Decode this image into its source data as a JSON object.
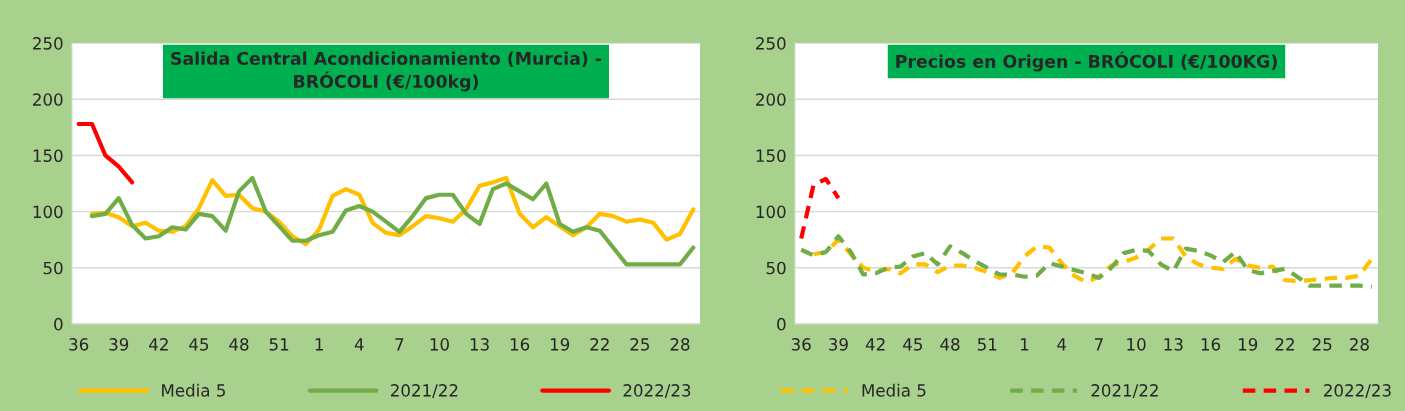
{
  "chart_data": [
    {
      "type": "line",
      "title": "Salida Central Acondicionamiento (Murcia) -\nBRÓCOLI (€/100kg)",
      "categories": [
        "36",
        null,
        null,
        "39",
        null,
        null,
        "42",
        null,
        null,
        "45",
        null,
        null,
        "48",
        null,
        null,
        "51",
        null,
        null,
        "1",
        null,
        null,
        "4",
        null,
        null,
        "7",
        null,
        null,
        "10",
        null,
        null,
        "13",
        null,
        null,
        "16",
        null,
        null,
        "19",
        null,
        null,
        "22",
        null,
        null,
        "25",
        null,
        null,
        "28",
        null
      ],
      "series": [
        {
          "name": "Media 5",
          "color": "#ffc000",
          "values": [
            null,
            98,
            99,
            95,
            87,
            90,
            83,
            82,
            87,
            103,
            128,
            114,
            115,
            103,
            100,
            91,
            78,
            71,
            84,
            114,
            120,
            115,
            90,
            81,
            79,
            87,
            96,
            94,
            91,
            102,
            123,
            126,
            130,
            98,
            86,
            95,
            87,
            79,
            86,
            98,
            96,
            91,
            93,
            90,
            75,
            80,
            102
          ]
        },
        {
          "name": "2021/22",
          "color": "#70ad47",
          "values": [
            null,
            96,
            98,
            112,
            88,
            76,
            78,
            86,
            84,
            98,
            96,
            83,
            118,
            130,
            100,
            87,
            74,
            74,
            79,
            82,
            101,
            105,
            100,
            91,
            82,
            96,
            112,
            115,
            115,
            98,
            89,
            120,
            125,
            118,
            111,
            125,
            89,
            82,
            86,
            83,
            68,
            53,
            53,
            53,
            53,
            53,
            68
          ]
        },
        {
          "name": "2022/23",
          "color": "#ff0000",
          "values": [
            178,
            178,
            150,
            140,
            126,
            null,
            null,
            null,
            null,
            null,
            null,
            null,
            null,
            null,
            null,
            null,
            null,
            null,
            null,
            null,
            null,
            null,
            null,
            null,
            null,
            null,
            null,
            null,
            null,
            null,
            null,
            null,
            null,
            null,
            null,
            null,
            null,
            null,
            null,
            null,
            null,
            null,
            null,
            null,
            null,
            null,
            null
          ]
        }
      ],
      "ylim": [
        0,
        250
      ],
      "yticks": [
        0,
        50,
        100,
        150,
        200,
        250
      ],
      "grid": "y",
      "legend": "bottom",
      "line_style": "solid"
    },
    {
      "type": "line",
      "title": "Precios en Origen - BRÓCOLI (€/100KG)",
      "categories": [
        "36",
        null,
        null,
        "39",
        null,
        null,
        "42",
        null,
        null,
        "45",
        null,
        null,
        "48",
        null,
        null,
        "51",
        null,
        null,
        "1",
        null,
        null,
        "4",
        null,
        null,
        "7",
        null,
        null,
        "10",
        null,
        null,
        "13",
        null,
        null,
        "16",
        null,
        null,
        "19",
        null,
        null,
        "22",
        null,
        null,
        "25",
        null,
        null,
        "28",
        null
      ],
      "series": [
        {
          "name": "Media 5",
          "color": "#ffc000",
          "values": [
            null,
            62,
            64,
            75,
            62,
            50,
            47,
            49,
            45,
            53,
            53,
            46,
            52,
            52,
            50,
            46,
            41,
            45,
            60,
            69,
            68,
            54,
            43,
            37,
            42,
            52,
            55,
            59,
            66,
            76,
            76,
            60,
            53,
            50,
            49,
            58,
            52,
            50,
            51,
            39,
            38,
            39,
            40,
            41,
            41,
            43,
            58
          ]
        },
        {
          "name": "2021/22",
          "color": "#70ad47",
          "values": [
            66,
            61,
            64,
            78,
            64,
            44,
            45,
            50,
            51,
            60,
            63,
            53,
            69,
            63,
            56,
            50,
            44,
            44,
            42,
            43,
            54,
            51,
            48,
            45,
            41,
            50,
            63,
            66,
            65,
            53,
            47,
            67,
            65,
            61,
            55,
            64,
            48,
            45,
            47,
            49,
            42,
            34,
            34,
            34,
            34,
            34,
            33
          ]
        },
        {
          "name": "2022/23",
          "color": "#ff0000",
          "values": [
            76,
            124,
            129,
            112,
            null,
            null,
            null,
            null,
            null,
            null,
            null,
            null,
            null,
            null,
            null,
            null,
            null,
            null,
            null,
            null,
            null,
            null,
            null,
            null,
            null,
            null,
            null,
            null,
            null,
            null,
            null,
            null,
            null,
            null,
            null,
            null,
            null,
            null,
            null,
            null,
            null,
            null,
            null,
            null,
            null,
            null,
            null
          ]
        }
      ],
      "ylim": [
        0,
        250
      ],
      "yticks": [
        0,
        50,
        100,
        150,
        200,
        250
      ],
      "grid": "y",
      "legend": "bottom",
      "line_style": "dashed"
    }
  ]
}
